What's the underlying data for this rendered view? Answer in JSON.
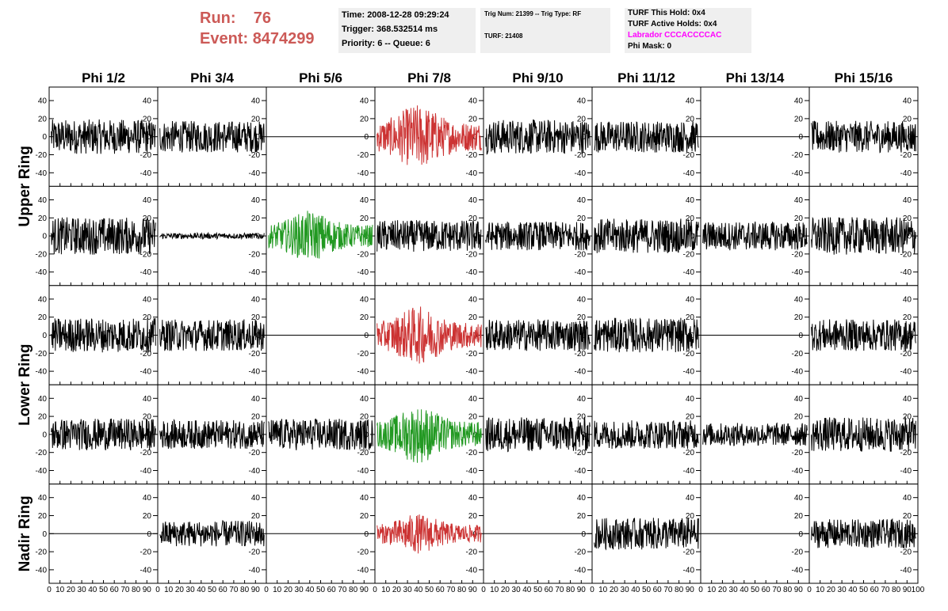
{
  "header": {
    "run_label": "Run:",
    "run_value": "76",
    "event_label": "Event:",
    "event_value": "8474299",
    "time_line": "Time: 2008-12-28 09:29:24",
    "trigger_line": "Trigger: 368.532514 ms",
    "priority_line": "Priority: 6 -- Queue: 6",
    "trig_line": "Trig Num: 21399 -- Trig Type: RF",
    "turf_line": "TURF: 21408",
    "turf_hold_line": "TURF This Hold: 0x4",
    "turf_active_line": "TURF Active Holds: 0x4",
    "labrador_line": "Labrador CCCACCCCAC",
    "phi_mask_line": "Phi Mask: 0"
  },
  "chart_data": {
    "type": "line",
    "columns": [
      "Phi 1/2",
      "Phi 3/4",
      "Phi 5/6",
      "Phi 7/8",
      "Phi 9/10",
      "Phi 11/12",
      "Phi 13/14",
      "Phi 15/16"
    ],
    "ring_labels": [
      {
        "label": "Upper Ring",
        "spans_rows": [
          0,
          1
        ]
      },
      {
        "label": "Lower Ring",
        "spans_rows": [
          2,
          3
        ]
      },
      {
        "label": "Nadir Ring",
        "spans_rows": [
          4
        ]
      }
    ],
    "xlim": [
      0,
      100
    ],
    "ylim": [
      -55,
      55
    ],
    "yticks": [
      -40,
      -20,
      0,
      20,
      40
    ],
    "xticks": [
      0,
      10,
      20,
      30,
      40,
      50,
      60,
      70,
      80,
      90,
      100
    ],
    "colors": {
      "normal": "#000000",
      "red": "#cc3333",
      "green": "#229922",
      "flat": "#000000"
    },
    "panels": [
      [
        {
          "state": "normal",
          "amp": 12
        },
        {
          "state": "normal",
          "amp": 11
        },
        {
          "state": "flat",
          "amp": 0
        },
        {
          "state": "red",
          "amp": 18
        },
        {
          "state": "normal",
          "amp": 12
        },
        {
          "state": "normal",
          "amp": 11
        },
        {
          "state": "flat",
          "amp": 0
        },
        {
          "state": "normal",
          "amp": 11
        }
      ],
      [
        {
          "state": "normal",
          "amp": 13
        },
        {
          "state": "normal",
          "amp": 2
        },
        {
          "state": "green",
          "amp": 14
        },
        {
          "state": "normal",
          "amp": 11
        },
        {
          "state": "normal",
          "amp": 10
        },
        {
          "state": "normal",
          "amp": 12
        },
        {
          "state": "normal",
          "amp": 10
        },
        {
          "state": "normal",
          "amp": 13
        }
      ],
      [
        {
          "state": "normal",
          "amp": 12
        },
        {
          "state": "normal",
          "amp": 11
        },
        {
          "state": "flat",
          "amp": 0
        },
        {
          "state": "red",
          "amp": 16
        },
        {
          "state": "normal",
          "amp": 11
        },
        {
          "state": "normal",
          "amp": 12
        },
        {
          "state": "flat",
          "amp": 0
        },
        {
          "state": "normal",
          "amp": 11
        }
      ],
      [
        {
          "state": "normal",
          "amp": 11
        },
        {
          "state": "normal",
          "amp": 10
        },
        {
          "state": "normal",
          "amp": 11
        },
        {
          "state": "green",
          "amp": 16
        },
        {
          "state": "normal",
          "amp": 12
        },
        {
          "state": "normal",
          "amp": 10
        },
        {
          "state": "normal",
          "amp": 8
        },
        {
          "state": "normal",
          "amp": 12
        }
      ],
      [
        {
          "state": "flat",
          "amp": 0
        },
        {
          "state": "normal",
          "amp": 9
        },
        {
          "state": "flat",
          "amp": 0
        },
        {
          "state": "red",
          "amp": 11
        },
        {
          "state": "flat",
          "amp": 0
        },
        {
          "state": "normal",
          "amp": 11
        },
        {
          "state": "flat",
          "amp": 0
        },
        {
          "state": "normal",
          "amp": 10
        }
      ]
    ],
    "grid": false
  }
}
